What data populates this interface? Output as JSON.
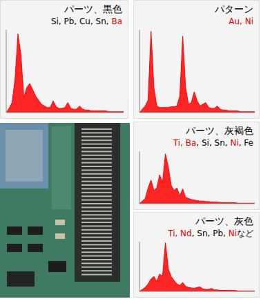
{
  "chart_data": [
    {
      "type": "area",
      "title": "パーツ、黒色",
      "elements": [
        {
          "text": "Si, Pb, Cu, Sn, ",
          "color": "#000000"
        },
        {
          "text": "Ba",
          "color": "#e00000"
        }
      ],
      "color": "#ff0000",
      "grid": false,
      "tick_labels": false,
      "xlim": [
        0,
        20
      ],
      "ylim": [
        0,
        100
      ],
      "x": [
        0,
        0.5,
        1,
        1.5,
        2,
        2.5,
        3,
        3.5,
        4,
        4.5,
        5,
        5.5,
        6,
        6.5,
        7,
        7.5,
        8,
        8.5,
        9,
        9.5,
        10,
        10.5,
        11,
        11.5,
        12,
        12.5,
        13,
        13.5,
        14,
        14.5,
        15,
        15.5,
        16,
        16.5,
        17,
        17.5,
        18,
        18.5,
        19,
        19.5,
        20
      ],
      "values": [
        0,
        5,
        12,
        40,
        95,
        70,
        18,
        30,
        35,
        28,
        20,
        15,
        10,
        8,
        6,
        6,
        14,
        7,
        5,
        5,
        6,
        12,
        5,
        4,
        4,
        8,
        4,
        3,
        3,
        2,
        2,
        2,
        2,
        2,
        2,
        1,
        1,
        1,
        1,
        1,
        1
      ]
    },
    {
      "type": "area",
      "title": "パターン",
      "elements": [
        {
          "text": "Au, Ni",
          "color": "#e00000"
        }
      ],
      "color": "#ff0000",
      "grid": false,
      "tick_labels": false,
      "xlim": [
        0,
        20
      ],
      "ylim": [
        0,
        100
      ],
      "x": [
        0,
        0.5,
        1,
        1.5,
        2,
        2.5,
        3,
        3.5,
        4,
        4.5,
        5,
        5.5,
        6,
        6.5,
        7,
        7.5,
        8,
        8.5,
        9,
        9.5,
        10,
        10.5,
        11,
        11.5,
        12,
        12.5,
        13,
        13.5,
        14,
        14.5,
        15,
        15.5,
        16,
        16.5,
        17,
        17.5,
        18,
        18.5,
        19,
        19.5,
        20
      ],
      "values": [
        0,
        4,
        8,
        15,
        98,
        30,
        8,
        6,
        6,
        6,
        6,
        7,
        7,
        8,
        20,
        92,
        30,
        10,
        12,
        25,
        14,
        8,
        10,
        12,
        6,
        5,
        5,
        8,
        4,
        3,
        3,
        2,
        2,
        2,
        2,
        1,
        1,
        1,
        1,
        1,
        1
      ]
    },
    {
      "type": "area",
      "title": "パーツ、灰褐色",
      "elements": [
        {
          "text": "Ti, Ba",
          "color": "#e00000"
        },
        {
          "text": ", Si, Sn, ",
          "color": "#000000"
        },
        {
          "text": "Ni",
          "color": "#e00000"
        },
        {
          "text": ", Fe",
          "color": "#000000"
        }
      ],
      "color": "#ff0000",
      "grid": false,
      "tick_labels": false,
      "xlim": [
        0,
        20
      ],
      "ylim": [
        0,
        100
      ],
      "x": [
        0,
        0.5,
        1,
        1.5,
        2,
        2.5,
        3,
        3.5,
        4,
        4.5,
        5,
        5.5,
        6,
        6.5,
        7,
        7.5,
        8,
        8.5,
        9,
        9.5,
        10,
        10.5,
        11,
        11.5,
        12,
        12.5,
        13,
        13.5,
        14,
        14.5,
        15,
        15.5,
        16,
        16.5,
        17,
        17.5,
        18,
        18.5,
        19,
        19.5,
        20
      ],
      "values": [
        0,
        5,
        10,
        30,
        45,
        25,
        30,
        55,
        40,
        95,
        70,
        35,
        25,
        30,
        15,
        28,
        12,
        10,
        8,
        7,
        6,
        5,
        5,
        4,
        4,
        3,
        3,
        3,
        2,
        2,
        2,
        2,
        2,
        2,
        1,
        1,
        1,
        1,
        1,
        1,
        1
      ]
    },
    {
      "type": "area",
      "title": "パーツ、灰色",
      "elements": [
        {
          "text": "Ti, Nd",
          "color": "#e00000"
        },
        {
          "text": ", Sn, Pb, ",
          "color": "#000000"
        },
        {
          "text": "Ni",
          "color": "#e00000"
        },
        {
          "text": "など",
          "color": "#000000"
        }
      ],
      "color": "#ff0000",
      "grid": false,
      "tick_labels": false,
      "xlim": [
        0,
        20
      ],
      "ylim": [
        0,
        100
      ],
      "x": [
        0,
        0.5,
        1,
        1.5,
        2,
        2.5,
        3,
        3.5,
        4,
        4.5,
        5,
        5.5,
        6,
        6.5,
        7,
        7.5,
        8,
        8.5,
        9,
        9.5,
        10,
        10.5,
        11,
        11.5,
        12,
        12.5,
        13,
        13.5,
        14,
        14.5,
        15,
        15.5,
        16,
        16.5,
        17,
        17.5,
        18,
        18.5,
        19,
        19.5,
        20
      ],
      "values": [
        0,
        4,
        8,
        15,
        25,
        30,
        20,
        35,
        30,
        98,
        45,
        30,
        22,
        15,
        12,
        18,
        10,
        8,
        7,
        6,
        8,
        9,
        5,
        4,
        4,
        6,
        3,
        3,
        2,
        2,
        2,
        2,
        2,
        2,
        1,
        1,
        1,
        1,
        1,
        1,
        1
      ]
    }
  ]
}
